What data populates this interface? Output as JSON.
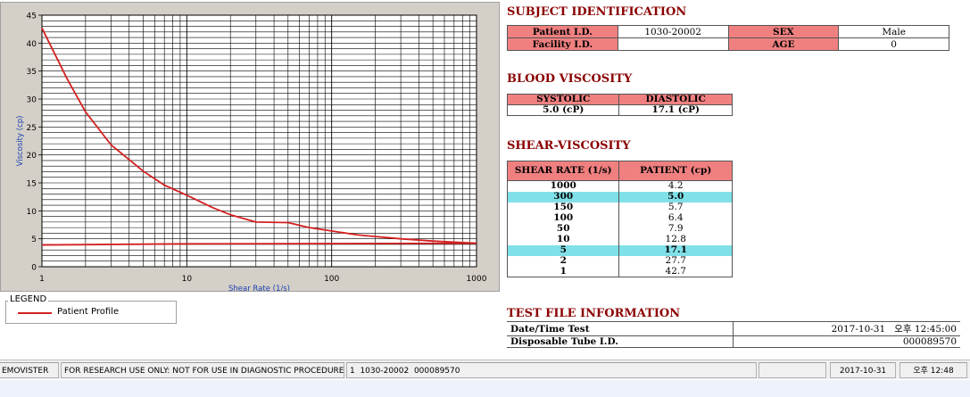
{
  "chart_data": {
    "type": "line",
    "xscale": "log",
    "xlim": [
      1,
      1000
    ],
    "ylim": [
      0,
      45
    ],
    "x_ticks": [
      "1",
      "10",
      "100",
      "1000"
    ],
    "y_ticks": [
      "0",
      "5",
      "10",
      "15",
      "20",
      "25",
      "30",
      "35",
      "40",
      "45"
    ],
    "xlabel": "Shear Rate (1/s)",
    "ylabel": "Viscosity (cp)",
    "grid": true,
    "series": [
      {
        "name": "Patient Profile",
        "color": "#d42020",
        "x": [
          1,
          1.5,
          2,
          3,
          5,
          7,
          10,
          15,
          20,
          30,
          50,
          70,
          100,
          150,
          200,
          300,
          500,
          700,
          1000
        ],
        "y": [
          42.7,
          33.5,
          27.7,
          21.8,
          17.1,
          14.6,
          12.8,
          10.6,
          9.3,
          8.0,
          7.9,
          7.0,
          6.4,
          5.7,
          5.4,
          5.0,
          4.6,
          4.4,
          4.2
        ]
      },
      {
        "x": [
          1,
          10,
          1000
        ],
        "y": [
          3.9,
          4.1,
          4.2
        ],
        "color": "#d42020"
      }
    ]
  },
  "legend": {
    "title": "LEGEND",
    "items": [
      {
        "label": "Patient Profile",
        "color": "#d42020"
      }
    ]
  },
  "subject": {
    "title": "SUBJECT IDENTIFICATION",
    "patient_id_label": "Patient I.D.",
    "patient_id": "1030-20002",
    "facility_id_label": "Facility I.D.",
    "facility_id": "",
    "sex_label": "SEX",
    "sex": "Male",
    "age_label": "AGE",
    "age": "0"
  },
  "blood": {
    "title": "BLOOD VISCOSITY",
    "systolic_label": "SYSTOLIC",
    "diastolic_label": "DIASTOLIC",
    "systolic": "5.0 (cP)",
    "diastolic": "17.1 (cP)"
  },
  "shear": {
    "title": "SHEAR-VISCOSITY",
    "col1": "SHEAR RATE (1/s)",
    "col2": "PATIENT (cp)",
    "rows": [
      {
        "rate": "1000",
        "value": "4.2",
        "highlight": false
      },
      {
        "rate": "300",
        "value": "5.0",
        "highlight": true
      },
      {
        "rate": "150",
        "value": "5.7",
        "highlight": false
      },
      {
        "rate": "100",
        "value": "6.4",
        "highlight": false
      },
      {
        "rate": "50",
        "value": "7.9",
        "highlight": false
      },
      {
        "rate": "10",
        "value": "12.8",
        "highlight": false
      },
      {
        "rate": "5",
        "value": "17.1",
        "highlight": true
      },
      {
        "rate": "2",
        "value": "27.7",
        "highlight": false
      },
      {
        "rate": "1",
        "value": "42.7",
        "highlight": false
      }
    ]
  },
  "testfile": {
    "title": "TEST FILE INFORMATION",
    "datetime_label": "Date/Time Test",
    "datetime": "2017-10-31   오후 12:45:00",
    "tube_label": "Disposable Tube I.D.",
    "tube": "000089570"
  },
  "status": {
    "app": "EMOVISTER",
    "notice": "FOR RESEARCH USE ONLY: NOT FOR USE IN DIAGNOSTIC PROCEDURES",
    "record": "1  1030-20002  000089570",
    "empty": "",
    "date": "2017-10-31",
    "time": "오후 12:48"
  }
}
